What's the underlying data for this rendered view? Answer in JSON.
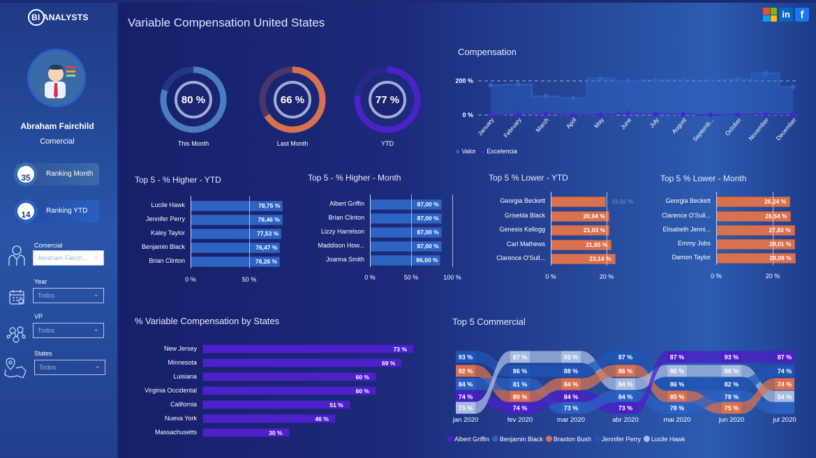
{
  "app": {
    "logo": "BI ANALYSTS",
    "title": "Variable Compensation United States"
  },
  "social": [
    "microsoft-icon",
    "linkedin-icon",
    "facebook-icon"
  ],
  "profile": {
    "name": "Abraham Fairchild",
    "role": "Comercial",
    "ranking_month": {
      "value": "35",
      "label": "Ranking Month"
    },
    "ranking_ytd": {
      "value": "14",
      "label": "Ranking YTD"
    }
  },
  "filters": [
    {
      "label": "Comercial",
      "value": "Abraham Fairch...",
      "icon": "person-icon"
    },
    {
      "label": "Year",
      "value": "Todos",
      "icon": "calendar-icon"
    },
    {
      "label": "VP",
      "value": "Todos",
      "icon": "network-icon"
    },
    {
      "label": "States",
      "value": "Todos",
      "icon": "map-pin-icon"
    }
  ],
  "kpis": [
    {
      "value": 80,
      "text": "80 %",
      "label": "This Month",
      "color": "#4a7cc0"
    },
    {
      "value": 66,
      "text": "66 %",
      "label": "Last Month",
      "color": "#d8714f"
    },
    {
      "value": 77,
      "text": "77 %",
      "label": "YTD",
      "color": "#4b22c8"
    }
  ],
  "colors": {
    "blue_bar": "#2e63c4",
    "orange_bar": "#d8714f",
    "purple_bar": "#4b22c8"
  },
  "chart_data": [
    {
      "id": "compensation",
      "type": "line",
      "title": "Compensation",
      "categories": [
        "January",
        "February",
        "March",
        "April",
        "May",
        "June",
        "July",
        "August",
        "Septemb...",
        "October",
        "November",
        "December"
      ],
      "yticks": [
        "0 %",
        "200 %"
      ],
      "ylim": [
        0,
        200
      ],
      "series": [
        {
          "name": "Valor",
          "color": "#2e63c4",
          "values": [
            175,
            180,
            110,
            100,
            215,
            200,
            205,
            205,
            205,
            210,
            245,
            165
          ]
        },
        {
          "name": "Excelencia",
          "color": "#4b22c8",
          "values": [
            2,
            5,
            5,
            2,
            2,
            8,
            6,
            4,
            1,
            2,
            3,
            3
          ]
        }
      ],
      "legend": "bottom-left"
    },
    {
      "id": "higher_ytd",
      "type": "bar",
      "title": "Top 5 - % Higher - YTD",
      "categories": [
        "Lucile Hawk",
        "Jennifer Perry",
        "Kaley Taylor",
        "Benjamin Black",
        "Brian Clinton"
      ],
      "values": [
        78.75,
        78.46,
        77.53,
        76.47,
        76.26
      ],
      "labels": [
        "78,75 %",
        "78,46 %",
        "77,53 %",
        "76,47 %",
        "76,26 %"
      ],
      "xticks": [
        "0 %",
        "50 %"
      ]
    },
    {
      "id": "higher_month",
      "type": "bar",
      "title": "Top 5 - % Higher - Month",
      "categories": [
        "Albert Griffin",
        "Brian Clinton",
        "Lizzy Harrelson",
        "Maddison How...",
        "Joanna Smith"
      ],
      "values": [
        87,
        87,
        87,
        87,
        86
      ],
      "labels": [
        "87,00 %",
        "87,00 %",
        "87,00 %",
        "87,00 %",
        "86,00 %"
      ],
      "xticks": [
        "0 %",
        "50 %",
        "100 %"
      ]
    },
    {
      "id": "lower_ytd",
      "type": "bar",
      "title": "Top 5 % Lower - YTD",
      "categories": [
        "Georgia Beckett",
        "Griselda Black",
        "Genesis Kellogg",
        "Carl Mathews",
        "Clarence O'Sull..."
      ],
      "values": [
        19.82,
        20.94,
        21.03,
        21.85,
        23.14
      ],
      "labels": [
        "19,82 %",
        "20,94 %",
        "21,03 %",
        "21,85 %",
        "23,14 %"
      ],
      "xticks": [
        "0 %",
        "20 %"
      ]
    },
    {
      "id": "lower_month",
      "type": "bar",
      "title": "Top 5 % Lower - Month",
      "categories": [
        "Georgia Beckett",
        "Clarence O'Sull...",
        "Elisabeth Jenni...",
        "Emmy Jobs",
        "Damon Taylor"
      ],
      "values": [
        26.24,
        26.54,
        27.83,
        28.01,
        28.08
      ],
      "labels": [
        "26,24 %",
        "26,54 %",
        "27,83 %",
        "28,01 %",
        "28,08 %"
      ],
      "xticks": [
        "0 %",
        "20 %"
      ]
    },
    {
      "id": "states",
      "type": "bar",
      "title": "% Variable Compensation by States",
      "categories": [
        "New Jersey",
        "Minnesota",
        "Luisiana",
        "Virginia Occidental",
        "California",
        "Nueva York",
        "Massachusetts"
      ],
      "values": [
        73,
        69,
        60,
        60,
        51,
        46,
        30
      ],
      "labels": [
        "73 %",
        "69 %",
        "60 %",
        "60 %",
        "51 %",
        "46 %",
        "30 %"
      ]
    },
    {
      "id": "top5_commercial",
      "type": "ribbon",
      "title": "Top 5 Commercial",
      "series": [
        {
          "name": "Albert Griffin",
          "color": "#4b1fc6"
        },
        {
          "name": "Benjamin Black",
          "color": "#2a62c4"
        },
        {
          "name": "Braxton Bush",
          "color": "#d8714f"
        },
        {
          "name": "Jennifer Perry",
          "color": "#1f55b5"
        },
        {
          "name": "Lucile Hawk",
          "color": "#a9bde2"
        }
      ],
      "categories": [
        "jan 2020",
        "fev 2020",
        "mar 2020",
        "abr 2020",
        "mai 2020",
        "jun 2020",
        "jul 2020"
      ],
      "stacks": [
        [
          [
            "Jennifer Perry",
            "93 %"
          ],
          [
            "Braxton Bush",
            "92 %"
          ],
          [
            "Benjamin Black",
            "84 %"
          ],
          [
            "Albert Griffin",
            "74 %"
          ],
          [
            "Lucile Hawk",
            "73 %"
          ]
        ],
        [
          [
            "Lucile Hawk",
            "87 %"
          ],
          [
            "Jennifer Perry",
            "86 %"
          ],
          [
            "Benjamin Black",
            "81 %"
          ],
          [
            "Braxton Bush",
            "80 %"
          ],
          [
            "Albert Griffin",
            "74 %"
          ]
        ],
        [
          [
            "Lucile Hawk",
            "93 %"
          ],
          [
            "Jennifer Perry",
            "88 %"
          ],
          [
            "Braxton Bush",
            "84 %"
          ],
          [
            "Albert Griffin",
            "84 %"
          ],
          [
            "Benjamin Black",
            "73 %"
          ]
        ],
        [
          [
            "Jennifer Perry",
            "87 %"
          ],
          [
            "Braxton Bush",
            "86 %"
          ],
          [
            "Lucile Hawk",
            "84 %"
          ],
          [
            "Benjamin Black",
            "84 %"
          ],
          [
            "Albert Griffin",
            "73 %"
          ]
        ],
        [
          [
            "Albert Griffin",
            "87 %"
          ],
          [
            "Lucile Hawk",
            "86 %"
          ],
          [
            "Jennifer Perry",
            "86 %"
          ],
          [
            "Braxton Bush",
            "85 %"
          ],
          [
            "Benjamin Black",
            "78 %"
          ]
        ],
        [
          [
            "Albert Griffin",
            "93 %"
          ],
          [
            "Lucile Hawk",
            "88 %"
          ],
          [
            "Jennifer Perry",
            "82 %"
          ],
          [
            "Benjamin Black",
            "78 %"
          ],
          [
            "Braxton Bush",
            "75 %"
          ]
        ],
        [
          [
            "Albert Griffin",
            "87 %"
          ],
          [
            "Jennifer Perry",
            "74 %"
          ],
          [
            "Braxton Bush",
            "74 %"
          ],
          [
            "Lucile Hawk",
            "54 %"
          ],
          [
            "Benjamin Black",
            ""
          ]
        ]
      ],
      "legend": "bottom"
    }
  ]
}
